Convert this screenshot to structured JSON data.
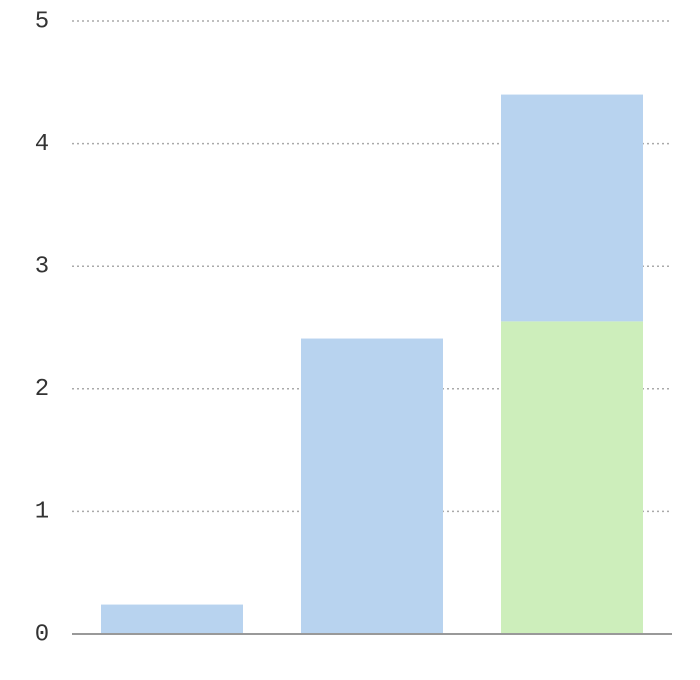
{
  "chart_data": {
    "type": "stacked_bar",
    "categories": [
      null,
      null,
      null
    ],
    "series": [
      {
        "color": "#cdeebb",
        "values": [
          null,
          null,
          2.55
        ]
      },
      {
        "color": "#b8d3ef",
        "values": [
          0.24,
          2.41,
          1.85
        ]
      }
    ],
    "ylim": [
      0,
      5
    ],
    "yticks": [
      0,
      1,
      2,
      3,
      4,
      5
    ],
    "grid": true
  }
}
